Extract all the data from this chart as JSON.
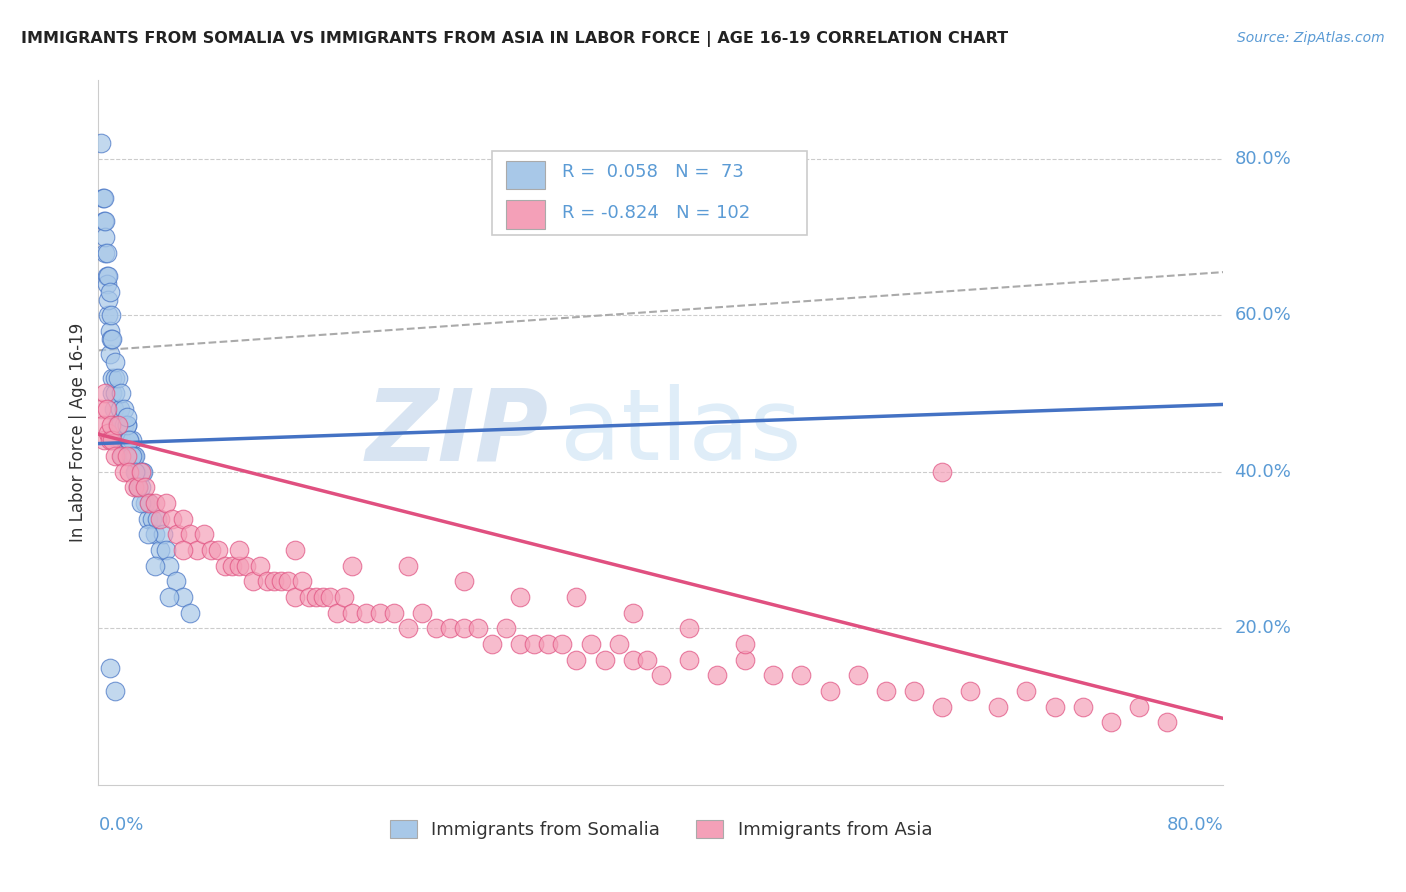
{
  "title": "IMMIGRANTS FROM SOMALIA VS IMMIGRANTS FROM ASIA IN LABOR FORCE | AGE 16-19 CORRELATION CHART",
  "source": "Source: ZipAtlas.com",
  "ylabel": "In Labor Force | Age 16-19",
  "ytick_labels": [
    "20.0%",
    "40.0%",
    "60.0%",
    "80.0%"
  ],
  "ytick_values": [
    0.2,
    0.4,
    0.6,
    0.8
  ],
  "xlim": [
    0.0,
    0.8
  ],
  "ylim": [
    0.0,
    0.9
  ],
  "legend_r_somalia": "0.058",
  "legend_n_somalia": "73",
  "legend_r_asia": "-0.824",
  "legend_n_asia": "102",
  "color_somalia": "#a8c8e8",
  "color_asia": "#f4a0b8",
  "line_somalia": "#4472c4",
  "line_asia": "#e05080",
  "somalia_points_x": [
    0.002,
    0.003,
    0.004,
    0.005,
    0.005,
    0.006,
    0.006,
    0.007,
    0.007,
    0.008,
    0.008,
    0.009,
    0.01,
    0.01,
    0.011,
    0.012,
    0.012,
    0.013,
    0.014,
    0.015,
    0.015,
    0.016,
    0.017,
    0.018,
    0.019,
    0.02,
    0.021,
    0.022,
    0.023,
    0.024,
    0.025,
    0.026,
    0.027,
    0.028,
    0.03,
    0.031,
    0.032,
    0.033,
    0.035,
    0.036,
    0.038,
    0.04,
    0.042,
    0.044,
    0.046,
    0.048,
    0.05,
    0.055,
    0.06,
    0.065,
    0.004,
    0.005,
    0.006,
    0.007,
    0.008,
    0.009,
    0.01,
    0.012,
    0.014,
    0.016,
    0.018,
    0.02,
    0.022,
    0.024,
    0.026,
    0.028,
    0.03,
    0.035,
    0.04,
    0.05,
    0.008,
    0.012,
    0.02
  ],
  "somalia_points_y": [
    0.82,
    0.75,
    0.72,
    0.68,
    0.7,
    0.65,
    0.64,
    0.6,
    0.62,
    0.58,
    0.55,
    0.57,
    0.5,
    0.52,
    0.48,
    0.5,
    0.52,
    0.46,
    0.44,
    0.46,
    0.48,
    0.44,
    0.42,
    0.46,
    0.44,
    0.46,
    0.44,
    0.44,
    0.42,
    0.44,
    0.42,
    0.42,
    0.4,
    0.38,
    0.38,
    0.4,
    0.4,
    0.36,
    0.34,
    0.36,
    0.34,
    0.32,
    0.34,
    0.3,
    0.32,
    0.3,
    0.28,
    0.26,
    0.24,
    0.22,
    0.75,
    0.72,
    0.68,
    0.65,
    0.63,
    0.6,
    0.57,
    0.54,
    0.52,
    0.5,
    0.48,
    0.46,
    0.44,
    0.42,
    0.4,
    0.38,
    0.36,
    0.32,
    0.28,
    0.24,
    0.15,
    0.12,
    0.47
  ],
  "asia_points_x": [
    0.002,
    0.003,
    0.004,
    0.005,
    0.006,
    0.007,
    0.008,
    0.009,
    0.01,
    0.012,
    0.014,
    0.016,
    0.018,
    0.02,
    0.022,
    0.025,
    0.028,
    0.03,
    0.033,
    0.036,
    0.04,
    0.044,
    0.048,
    0.052,
    0.056,
    0.06,
    0.065,
    0.07,
    0.075,
    0.08,
    0.085,
    0.09,
    0.095,
    0.1,
    0.105,
    0.11,
    0.115,
    0.12,
    0.125,
    0.13,
    0.135,
    0.14,
    0.145,
    0.15,
    0.155,
    0.16,
    0.165,
    0.17,
    0.175,
    0.18,
    0.19,
    0.2,
    0.21,
    0.22,
    0.23,
    0.24,
    0.25,
    0.26,
    0.27,
    0.28,
    0.29,
    0.3,
    0.31,
    0.32,
    0.33,
    0.34,
    0.35,
    0.36,
    0.37,
    0.38,
    0.39,
    0.4,
    0.42,
    0.44,
    0.46,
    0.48,
    0.5,
    0.52,
    0.54,
    0.56,
    0.58,
    0.6,
    0.62,
    0.64,
    0.66,
    0.68,
    0.7,
    0.72,
    0.74,
    0.76,
    0.06,
    0.1,
    0.14,
    0.18,
    0.22,
    0.26,
    0.3,
    0.34,
    0.38,
    0.42,
    0.46,
    0.6
  ],
  "asia_points_y": [
    0.48,
    0.46,
    0.44,
    0.5,
    0.48,
    0.45,
    0.44,
    0.46,
    0.44,
    0.42,
    0.46,
    0.42,
    0.4,
    0.42,
    0.4,
    0.38,
    0.38,
    0.4,
    0.38,
    0.36,
    0.36,
    0.34,
    0.36,
    0.34,
    0.32,
    0.34,
    0.32,
    0.3,
    0.32,
    0.3,
    0.3,
    0.28,
    0.28,
    0.28,
    0.28,
    0.26,
    0.28,
    0.26,
    0.26,
    0.26,
    0.26,
    0.24,
    0.26,
    0.24,
    0.24,
    0.24,
    0.24,
    0.22,
    0.24,
    0.22,
    0.22,
    0.22,
    0.22,
    0.2,
    0.22,
    0.2,
    0.2,
    0.2,
    0.2,
    0.18,
    0.2,
    0.18,
    0.18,
    0.18,
    0.18,
    0.16,
    0.18,
    0.16,
    0.18,
    0.16,
    0.16,
    0.14,
    0.16,
    0.14,
    0.16,
    0.14,
    0.14,
    0.12,
    0.14,
    0.12,
    0.12,
    0.1,
    0.12,
    0.1,
    0.12,
    0.1,
    0.1,
    0.08,
    0.1,
    0.08,
    0.3,
    0.3,
    0.3,
    0.28,
    0.28,
    0.26,
    0.24,
    0.24,
    0.22,
    0.2,
    0.18,
    0.4
  ],
  "somalia_line_x": [
    0.0,
    0.8
  ],
  "somalia_line_y": [
    0.436,
    0.486
  ],
  "asia_line_x": [
    0.0,
    0.8
  ],
  "asia_line_y": [
    0.448,
    0.085
  ],
  "dashed_line_x": [
    0.0,
    0.8
  ],
  "dashed_line_y": [
    0.555,
    0.655
  ]
}
